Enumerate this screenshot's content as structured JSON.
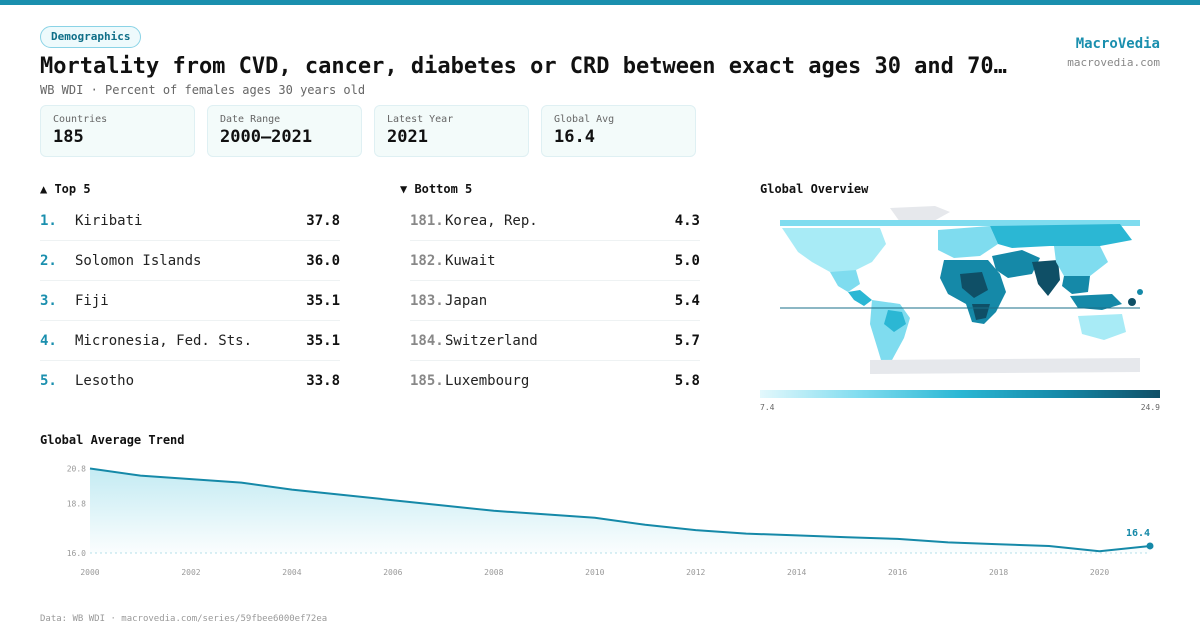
{
  "header": {
    "tag": "Demographics",
    "title": "Mortality from CVD, cancer, diabetes or CRD between exact ages 30 and 70…",
    "subtitle": "WB WDI · Percent of females ages 30 years old",
    "brand": "MacroVedia",
    "brand_url": "macrovedia.com"
  },
  "stats": [
    {
      "label": "Countries",
      "value": "185"
    },
    {
      "label": "Date Range",
      "value": "2000–2021"
    },
    {
      "label": "Latest Year",
      "value": "2021"
    },
    {
      "label": "Global Avg",
      "value": "16.4"
    }
  ],
  "top5": {
    "heading": "▲ Top 5",
    "items": [
      {
        "rank": "1.",
        "name": "Kiribati",
        "value": "37.8"
      },
      {
        "rank": "2.",
        "name": "Solomon Islands",
        "value": "36.0"
      },
      {
        "rank": "3.",
        "name": "Fiji",
        "value": "35.1"
      },
      {
        "rank": "4.",
        "name": "Micronesia, Fed. Sts.",
        "value": "35.1"
      },
      {
        "rank": "5.",
        "name": "Lesotho",
        "value": "33.8"
      }
    ]
  },
  "bottom5": {
    "heading": "▼ Bottom 5",
    "items": [
      {
        "rank": "181.",
        "name": "Korea, Rep.",
        "value": "4.3"
      },
      {
        "rank": "182.",
        "name": "Kuwait",
        "value": "5.0"
      },
      {
        "rank": "183.",
        "name": "Japan",
        "value": "5.4"
      },
      {
        "rank": "184.",
        "name": "Switzerland",
        "value": "5.7"
      },
      {
        "rank": "185.",
        "name": "Luxembourg",
        "value": "5.8"
      }
    ]
  },
  "map": {
    "heading": "Global Overview",
    "legend_min": "7.4",
    "legend_max": "24.9",
    "colors": [
      "#e3f8fc",
      "#7fdcef",
      "#2bb7d4",
      "#1589a8",
      "#0f4f66"
    ]
  },
  "trend": {
    "heading": "Global Average Trend"
  },
  "footer": "Data: WB WDI · macrovedia.com/series/59fbee6000ef72ea",
  "colors": {
    "accent": "#1a8fae",
    "line": "#1589a8"
  },
  "chart_data": {
    "type": "area",
    "title": "Global Average Trend",
    "x": [
      2000,
      2001,
      2002,
      2003,
      2004,
      2005,
      2006,
      2007,
      2008,
      2009,
      2010,
      2011,
      2012,
      2013,
      2014,
      2015,
      2016,
      2017,
      2018,
      2019,
      2020,
      2021
    ],
    "y": [
      20.8,
      20.4,
      20.2,
      20.0,
      19.6,
      19.3,
      19.0,
      18.7,
      18.4,
      18.2,
      18.0,
      17.6,
      17.3,
      17.1,
      17.0,
      16.9,
      16.8,
      16.6,
      16.5,
      16.4,
      16.1,
      16.4
    ],
    "x_ticks": [
      "2000",
      "2002",
      "2004",
      "2006",
      "2008",
      "2010",
      "2012",
      "2014",
      "2016",
      "2018",
      "2020"
    ],
    "y_ticks": [
      "16.0",
      "18.8",
      "20.8"
    ],
    "ylim": [
      16.0,
      21.0
    ],
    "last_label": "16.4",
    "grid": false
  }
}
